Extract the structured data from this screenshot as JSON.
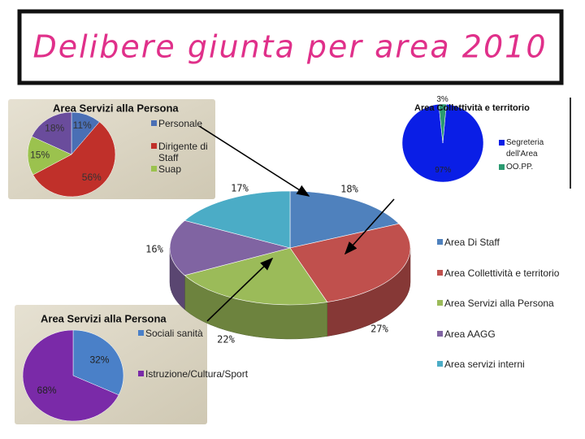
{
  "title": "Delibere giunta per area 2010",
  "chart_data": [
    {
      "type": "pie3d",
      "categories": [
        "Area Di Staff",
        "Area Collettività e territorio",
        "Area Servizi alla Persona",
        "Area AAGG",
        "Area servizi interni"
      ],
      "values": [
        18,
        27,
        22,
        16,
        17
      ],
      "value_labels": [
        "18%",
        "27%",
        "22%",
        "16%",
        "17%"
      ],
      "colors": [
        "#4f81bd",
        "#c0504d",
        "#9bbb59",
        "#8064a2",
        "#4bacc6"
      ]
    },
    {
      "type": "pie",
      "title": "Area Servizi alla Persona",
      "categories": [
        "Personale",
        "Dirigente di Staff",
        "Suap",
        null
      ],
      "values": [
        11,
        56,
        15,
        18
      ],
      "value_labels": [
        "11%",
        "56%",
        "15%",
        "18%"
      ],
      "colors": [
        "#4a6fb5",
        "#c0302a",
        "#9bc24e",
        "#6a4c9c"
      ]
    },
    {
      "type": "pie",
      "title": "Area Collettività e territorio",
      "categories": [
        "Segreteria dell'Area",
        "OO.PP."
      ],
      "values": [
        97,
        3
      ],
      "value_labels": [
        "97%",
        "3%"
      ],
      "colors": [
        "#0a1ee6",
        "#2a9a70"
      ]
    },
    {
      "type": "pie",
      "title": "Area Servizi alla Persona",
      "categories": [
        "Sociali sanità",
        "Istruzione/Cultura/Sport"
      ],
      "values": [
        32,
        68
      ],
      "value_labels": [
        "32%",
        "68%"
      ],
      "colors": [
        "#4a80c8",
        "#7a2aa8"
      ]
    }
  ]
}
